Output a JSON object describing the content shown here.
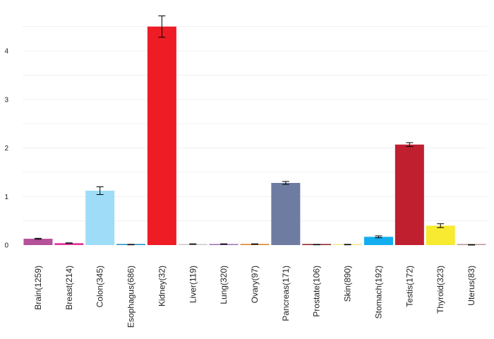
{
  "chart_data": {
    "type": "bar",
    "title": "",
    "xlabel": "",
    "ylabel": "",
    "ylim": [
      0,
      4.8
    ],
    "yticks": [
      "0",
      "1",
      "2",
      "3",
      "4"
    ],
    "grid": true,
    "error_bars": true,
    "categories": [
      "Brain(1259)",
      "Breast(214)",
      "Colon(345)",
      "Esophagus(686)",
      "Kidney(32)",
      "Liver(119)",
      "Lung(320)",
      "Ovary(97)",
      "Pancreas(171)",
      "Prostate(106)",
      "Skin(890)",
      "Stomach(192)",
      "Testis(172)",
      "Thyroid(323)",
      "Uterus(83)"
    ],
    "values": [
      0.13,
      0.04,
      1.12,
      0.01,
      4.5,
      0.02,
      0.02,
      0.02,
      1.28,
      0.01,
      0.01,
      0.17,
      2.07,
      0.4,
      0.005
    ],
    "errors": [
      0.01,
      0.005,
      0.08,
      0.005,
      0.22,
      0.005,
      0.005,
      0.005,
      0.03,
      0.005,
      0.005,
      0.02,
      0.04,
      0.04,
      0.005
    ],
    "colors": [
      "#b5509a",
      "#e0389c",
      "#9fdcf7",
      "#1c8ec5",
      "#ee1c25",
      "#c9c9c9",
      "#a070b8",
      "#d97d25",
      "#6f7ca2",
      "#8b1f1f",
      "#f3e887",
      "#12aeef",
      "#c01f30",
      "#f7ea31",
      "#b89595"
    ]
  }
}
